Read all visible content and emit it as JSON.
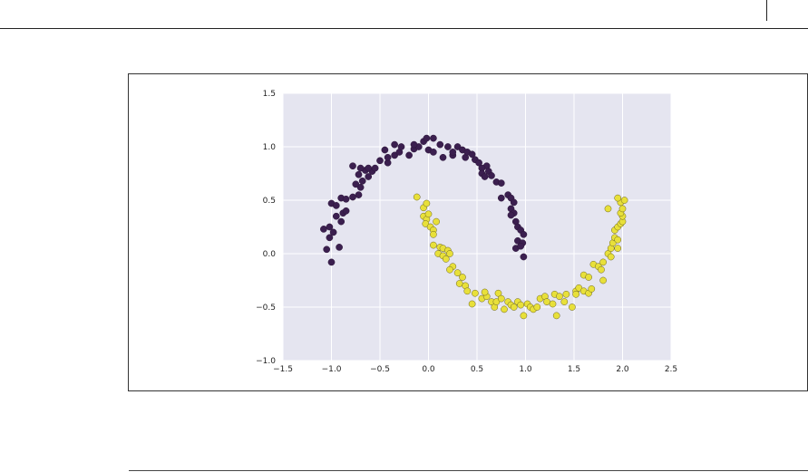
{
  "chart_data": {
    "type": "scatter",
    "title": "",
    "xlabel": "",
    "ylabel": "",
    "xlim": [
      -1.5,
      2.5
    ],
    "ylim": [
      -1.0,
      1.5
    ],
    "xticks": [
      "−1.5",
      "−1.0",
      "−0.5",
      "0.0",
      "0.5",
      "1.0",
      "1.5",
      "2.0",
      "2.5"
    ],
    "yticks": [
      "−1.0",
      "−0.5",
      "0.0",
      "0.5",
      "1.0",
      "1.5"
    ],
    "grid": true,
    "plot_background": "#e5e5f0",
    "series": [
      {
        "color": "#3b1f4f",
        "points": [
          [
            -1.0,
            -0.08
          ],
          [
            -1.05,
            0.04
          ],
          [
            -1.02,
            0.15
          ],
          [
            -0.98,
            0.2
          ],
          [
            -1.08,
            0.23
          ],
          [
            -1.02,
            0.25
          ],
          [
            -0.92,
            0.06
          ],
          [
            -0.9,
            0.3
          ],
          [
            -0.95,
            0.35
          ],
          [
            -0.88,
            0.38
          ],
          [
            -0.85,
            0.4
          ],
          [
            -1.0,
            0.47
          ],
          [
            -0.95,
            0.45
          ],
          [
            -0.9,
            0.52
          ],
          [
            -0.85,
            0.51
          ],
          [
            -0.78,
            0.53
          ],
          [
            -0.72,
            0.55
          ],
          [
            -0.7,
            0.62
          ],
          [
            -0.75,
            0.65
          ],
          [
            -0.68,
            0.68
          ],
          [
            -0.62,
            0.72
          ],
          [
            -0.72,
            0.74
          ],
          [
            -0.65,
            0.78
          ],
          [
            -0.58,
            0.77
          ],
          [
            -0.7,
            0.8
          ],
          [
            -0.62,
            0.8
          ],
          [
            -0.55,
            0.8
          ],
          [
            -0.78,
            0.82
          ],
          [
            -0.5,
            0.87
          ],
          [
            -0.42,
            0.85
          ],
          [
            -0.42,
            0.9
          ],
          [
            -0.35,
            0.92
          ],
          [
            -0.3,
            0.95
          ],
          [
            -0.45,
            0.97
          ],
          [
            -0.35,
            1.02
          ],
          [
            -0.28,
            1.0
          ],
          [
            -0.2,
            0.92
          ],
          [
            -0.15,
            0.98
          ],
          [
            -0.1,
            1.0
          ],
          [
            -0.15,
            1.02
          ],
          [
            -0.05,
            1.05
          ],
          [
            0.0,
            0.97
          ],
          [
            -0.02,
            1.08
          ],
          [
            0.05,
            1.08
          ],
          [
            0.05,
            0.95
          ],
          [
            0.12,
            1.02
          ],
          [
            0.2,
            1.0
          ],
          [
            0.25,
            0.92
          ],
          [
            0.3,
            1.0
          ],
          [
            0.25,
            0.95
          ],
          [
            0.35,
            0.97
          ],
          [
            0.15,
            0.9
          ],
          [
            0.38,
            0.9
          ],
          [
            0.4,
            0.95
          ],
          [
            0.45,
            0.93
          ],
          [
            0.48,
            0.88
          ],
          [
            0.52,
            0.85
          ],
          [
            0.6,
            0.82
          ],
          [
            0.55,
            0.8
          ],
          [
            0.62,
            0.77
          ],
          [
            0.55,
            0.75
          ],
          [
            0.65,
            0.73
          ],
          [
            0.58,
            0.72
          ],
          [
            0.7,
            0.67
          ],
          [
            0.75,
            0.66
          ],
          [
            0.75,
            0.52
          ],
          [
            0.82,
            0.55
          ],
          [
            0.85,
            0.52
          ],
          [
            0.88,
            0.48
          ],
          [
            0.85,
            0.42
          ],
          [
            0.88,
            0.38
          ],
          [
            0.85,
            0.36
          ],
          [
            0.9,
            0.3
          ],
          [
            0.92,
            0.25
          ],
          [
            0.95,
            0.22
          ],
          [
            0.98,
            0.18
          ],
          [
            0.92,
            0.12
          ],
          [
            0.97,
            0.1
          ],
          [
            0.9,
            0.05
          ],
          [
            0.95,
            0.07
          ],
          [
            0.98,
            -0.03
          ]
        ]
      },
      {
        "color": "#e8e03a",
        "points": [
          [
            -0.12,
            0.53
          ],
          [
            -0.05,
            0.43
          ],
          [
            -0.02,
            0.47
          ],
          [
            -0.05,
            0.35
          ],
          [
            -0.02,
            0.32
          ],
          [
            0.0,
            0.37
          ],
          [
            -0.03,
            0.28
          ],
          [
            0.02,
            0.25
          ],
          [
            0.05,
            0.22
          ],
          [
            0.05,
            0.18
          ],
          [
            0.08,
            0.3
          ],
          [
            0.05,
            0.08
          ],
          [
            0.12,
            0.06
          ],
          [
            0.15,
            0.05
          ],
          [
            0.2,
            0.03
          ],
          [
            0.1,
            0.0
          ],
          [
            0.15,
            -0.02
          ],
          [
            0.22,
            0.0
          ],
          [
            0.18,
            -0.05
          ],
          [
            0.25,
            -0.12
          ],
          [
            0.22,
            -0.15
          ],
          [
            0.3,
            -0.18
          ],
          [
            0.35,
            -0.22
          ],
          [
            0.32,
            -0.28
          ],
          [
            0.38,
            -0.3
          ],
          [
            0.4,
            -0.35
          ],
          [
            0.48,
            -0.37
          ],
          [
            0.45,
            -0.47
          ],
          [
            0.55,
            -0.42
          ],
          [
            0.6,
            -0.4
          ],
          [
            0.58,
            -0.36
          ],
          [
            0.65,
            -0.45
          ],
          [
            0.68,
            -0.5
          ],
          [
            0.72,
            -0.37
          ],
          [
            0.7,
            -0.45
          ],
          [
            0.75,
            -0.42
          ],
          [
            0.78,
            -0.52
          ],
          [
            0.82,
            -0.45
          ],
          [
            0.85,
            -0.48
          ],
          [
            0.88,
            -0.5
          ],
          [
            0.92,
            -0.45
          ],
          [
            0.95,
            -0.48
          ],
          [
            0.98,
            -0.58
          ],
          [
            1.02,
            -0.47
          ],
          [
            1.05,
            -0.5
          ],
          [
            1.08,
            -0.52
          ],
          [
            1.12,
            -0.5
          ],
          [
            1.15,
            -0.42
          ],
          [
            1.2,
            -0.4
          ],
          [
            1.22,
            -0.45
          ],
          [
            1.28,
            -0.47
          ],
          [
            1.3,
            -0.38
          ],
          [
            1.35,
            -0.4
          ],
          [
            1.32,
            -0.58
          ],
          [
            1.4,
            -0.45
          ],
          [
            1.42,
            -0.38
          ],
          [
            1.48,
            -0.5
          ],
          [
            1.52,
            -0.35
          ],
          [
            1.55,
            -0.32
          ],
          [
            1.52,
            -0.38
          ],
          [
            1.6,
            -0.35
          ],
          [
            1.65,
            -0.37
          ],
          [
            1.68,
            -0.33
          ],
          [
            1.6,
            -0.2
          ],
          [
            1.65,
            -0.22
          ],
          [
            1.7,
            -0.1
          ],
          [
            1.75,
            -0.12
          ],
          [
            1.78,
            -0.15
          ],
          [
            1.8,
            -0.25
          ],
          [
            1.8,
            -0.08
          ],
          [
            1.85,
            0.0
          ],
          [
            1.88,
            -0.03
          ],
          [
            1.88,
            0.05
          ],
          [
            1.9,
            0.1
          ],
          [
            1.92,
            0.15
          ],
          [
            1.95,
            0.13
          ],
          [
            1.95,
            0.05
          ],
          [
            1.92,
            0.22
          ],
          [
            1.95,
            0.25
          ],
          [
            1.98,
            0.28
          ],
          [
            2.0,
            0.3
          ],
          [
            2.0,
            0.35
          ],
          [
            1.98,
            0.38
          ],
          [
            2.0,
            0.42
          ],
          [
            1.98,
            0.48
          ],
          [
            2.02,
            0.5
          ],
          [
            1.95,
            0.52
          ],
          [
            1.85,
            0.42
          ]
        ]
      }
    ]
  }
}
